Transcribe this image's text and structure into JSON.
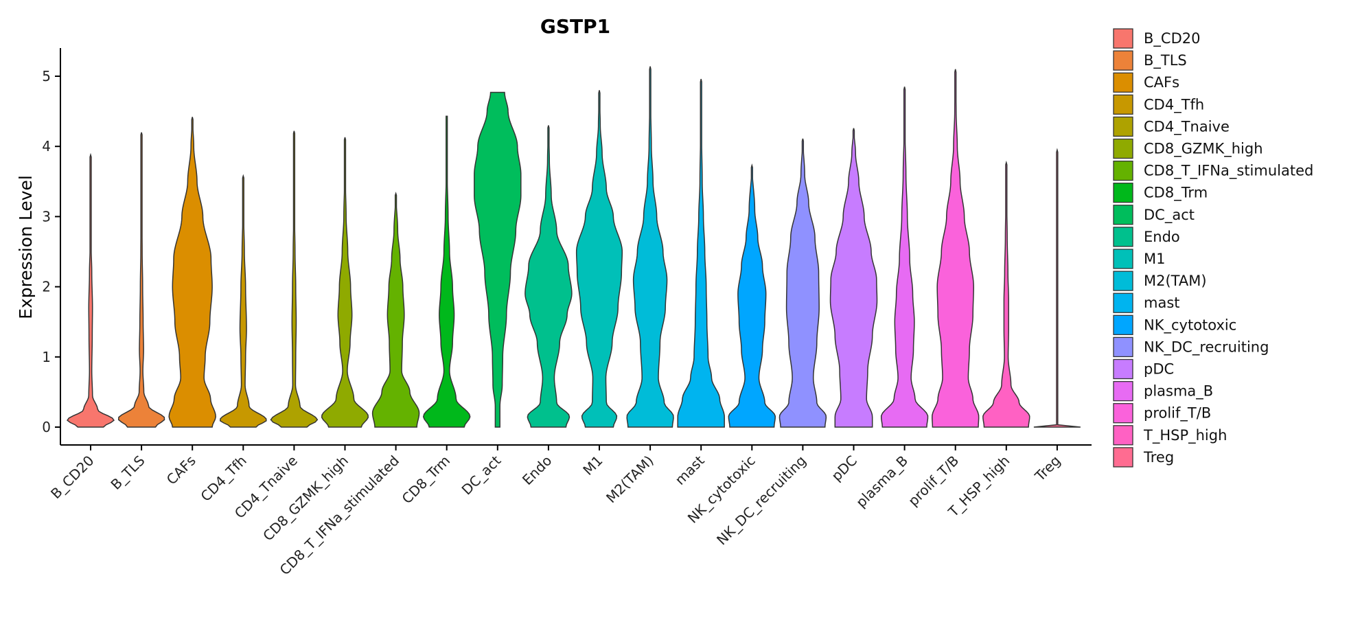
{
  "chart_data": {
    "type": "violin",
    "title": "GSTP1",
    "xlabel": "",
    "ylabel": "Expression Level",
    "ylim": [
      0,
      5.4
    ],
    "yticks": [
      0,
      1,
      2,
      3,
      4,
      5
    ],
    "legend_position": "right",
    "categories": [
      "B_CD20",
      "B_TLS",
      "CAFs",
      "CD4_Tfh",
      "CD4_Tnaive",
      "CD8_GZMK_high",
      "CD8_T_IFNa_stimulated",
      "CD8_Trm",
      "DC_act",
      "Endo",
      "M1",
      "M2(TAM)",
      "mast",
      "NK_cytotoxic",
      "NK_DC_recruiting",
      "pDC",
      "plasma_B",
      "prolif_T/B",
      "T_HSP_high",
      "Treg"
    ],
    "colors": [
      "#F8766D",
      "#EC8239",
      "#DB8E00",
      "#C79800",
      "#AEA200",
      "#8FAA00",
      "#64B200",
      "#00B81B",
      "#00BD5C",
      "#00C08D",
      "#00C0B8",
      "#00BCD8",
      "#00B4EF",
      "#00A6FF",
      "#8F91FF",
      "#C77CFF",
      "#E76BF3",
      "#FA62DB",
      "#FF61C3",
      "#FF6C91"
    ],
    "series": [
      {
        "name": "B_CD20",
        "ymax": 3.88,
        "profile": [
          [
            0,
            0.55
          ],
          [
            0.1,
            1
          ],
          [
            0.25,
            0.3
          ],
          [
            0.45,
            0.08
          ],
          [
            0.8,
            0.05
          ],
          [
            1.3,
            0.07
          ],
          [
            1.7,
            0.08
          ],
          [
            2.2,
            0.05
          ],
          [
            2.6,
            0.02
          ],
          [
            3.2,
            0.01
          ],
          [
            3.88,
            0
          ]
        ]
      },
      {
        "name": "B_TLS",
        "ymax": 4.2,
        "profile": [
          [
            0,
            0.6
          ],
          [
            0.12,
            1
          ],
          [
            0.3,
            0.3
          ],
          [
            0.5,
            0.1
          ],
          [
            0.8,
            0.06
          ],
          [
            1.1,
            0.09
          ],
          [
            1.5,
            0.07
          ],
          [
            2.0,
            0.05
          ],
          [
            2.5,
            0.03
          ],
          [
            3.2,
            0.01
          ],
          [
            4.2,
            0
          ]
        ]
      },
      {
        "name": "CAFs",
        "ymax": 4.42,
        "profile": [
          [
            0,
            0.85
          ],
          [
            0.15,
            1
          ],
          [
            0.4,
            0.78
          ],
          [
            0.7,
            0.5
          ],
          [
            1.0,
            0.55
          ],
          [
            1.5,
            0.75
          ],
          [
            2.0,
            0.85
          ],
          [
            2.4,
            0.8
          ],
          [
            3.0,
            0.45
          ],
          [
            3.5,
            0.2
          ],
          [
            4.0,
            0.06
          ],
          [
            4.42,
            0
          ]
        ]
      },
      {
        "name": "CD4_Tfh",
        "ymax": 3.58,
        "profile": [
          [
            0,
            0.55
          ],
          [
            0.1,
            1
          ],
          [
            0.3,
            0.25
          ],
          [
            0.6,
            0.08
          ],
          [
            1.0,
            0.1
          ],
          [
            1.4,
            0.14
          ],
          [
            2.0,
            0.1
          ],
          [
            2.5,
            0.05
          ],
          [
            3.0,
            0.02
          ],
          [
            3.58,
            0
          ]
        ]
      },
      {
        "name": "CD4_Tnaive",
        "ymax": 4.22,
        "profile": [
          [
            0,
            0.55
          ],
          [
            0.1,
            1
          ],
          [
            0.3,
            0.25
          ],
          [
            0.6,
            0.06
          ],
          [
            1.0,
            0.07
          ],
          [
            1.5,
            0.09
          ],
          [
            2.0,
            0.07
          ],
          [
            2.5,
            0.04
          ],
          [
            3.0,
            0.02
          ],
          [
            4.22,
            0
          ]
        ]
      },
      {
        "name": "CD8_GZMK_high",
        "ymax": 4.13,
        "profile": [
          [
            0,
            0.7
          ],
          [
            0.15,
            1
          ],
          [
            0.4,
            0.38
          ],
          [
            0.8,
            0.1
          ],
          [
            1.2,
            0.22
          ],
          [
            1.6,
            0.3
          ],
          [
            2.0,
            0.24
          ],
          [
            2.5,
            0.12
          ],
          [
            3.0,
            0.05
          ],
          [
            3.5,
            0.02
          ],
          [
            4.13,
            0
          ]
        ]
      },
      {
        "name": "CD8_T_IFNa_stimulated",
        "ymax": 3.33,
        "profile": [
          [
            0,
            0.9
          ],
          [
            0.2,
            1
          ],
          [
            0.5,
            0.6
          ],
          [
            0.8,
            0.25
          ],
          [
            1.2,
            0.28
          ],
          [
            1.6,
            0.36
          ],
          [
            2.0,
            0.3
          ],
          [
            2.4,
            0.18
          ],
          [
            2.8,
            0.08
          ],
          [
            3.33,
            0
          ]
        ]
      },
      {
        "name": "CD8_Trm",
        "ymax": 4.43,
        "profile": [
          [
            0,
            0.75
          ],
          [
            0.15,
            1
          ],
          [
            0.4,
            0.4
          ],
          [
            0.8,
            0.12
          ],
          [
            1.2,
            0.25
          ],
          [
            1.6,
            0.32
          ],
          [
            2.0,
            0.25
          ],
          [
            2.5,
            0.12
          ],
          [
            3.0,
            0.06
          ],
          [
            3.6,
            0.02
          ],
          [
            4.43,
            0
          ]
        ]
      },
      {
        "name": "DC_act",
        "ymax": 4.77,
        "profile": [
          [
            0,
            0.1
          ],
          [
            0.3,
            0.1
          ],
          [
            0.6,
            0.2
          ],
          [
            1.0,
            0.22
          ],
          [
            1.6,
            0.38
          ],
          [
            2.2,
            0.55
          ],
          [
            2.8,
            0.78
          ],
          [
            3.3,
            1
          ],
          [
            3.6,
            1
          ],
          [
            4.0,
            0.85
          ],
          [
            4.5,
            0.45
          ],
          [
            4.77,
            0.3
          ]
        ]
      },
      {
        "name": "Endo",
        "ymax": 4.3,
        "profile": [
          [
            0,
            0.75
          ],
          [
            0.15,
            0.9
          ],
          [
            0.35,
            0.35
          ],
          [
            0.7,
            0.25
          ],
          [
            1.2,
            0.48
          ],
          [
            1.6,
            0.8
          ],
          [
            1.9,
            1
          ],
          [
            2.3,
            0.85
          ],
          [
            2.8,
            0.35
          ],
          [
            3.3,
            0.12
          ],
          [
            3.8,
            0.04
          ],
          [
            4.3,
            0
          ]
        ]
      },
      {
        "name": "M1",
        "ymax": 4.8,
        "profile": [
          [
            0,
            0.6
          ],
          [
            0.15,
            0.75
          ],
          [
            0.35,
            0.3
          ],
          [
            0.7,
            0.28
          ],
          [
            1.2,
            0.55
          ],
          [
            1.7,
            0.8
          ],
          [
            2.2,
            0.95
          ],
          [
            2.5,
            0.98
          ],
          [
            3.0,
            0.6
          ],
          [
            3.4,
            0.3
          ],
          [
            3.9,
            0.12
          ],
          [
            4.3,
            0.04
          ],
          [
            4.8,
            0
          ]
        ]
      },
      {
        "name": "M2(TAM)",
        "ymax": 5.14,
        "profile": [
          [
            0,
            0.95
          ],
          [
            0.15,
            1
          ],
          [
            0.35,
            0.6
          ],
          [
            0.7,
            0.35
          ],
          [
            1.2,
            0.42
          ],
          [
            1.7,
            0.65
          ],
          [
            2.1,
            0.72
          ],
          [
            2.5,
            0.55
          ],
          [
            3.0,
            0.28
          ],
          [
            3.5,
            0.12
          ],
          [
            4.0,
            0.05
          ],
          [
            4.6,
            0.02
          ],
          [
            5.14,
            0
          ]
        ]
      },
      {
        "name": "mast",
        "ymax": 4.96,
        "profile": [
          [
            0,
            1
          ],
          [
            0.15,
            1
          ],
          [
            0.4,
            0.8
          ],
          [
            0.7,
            0.45
          ],
          [
            1.0,
            0.3
          ],
          [
            1.5,
            0.25
          ],
          [
            2.0,
            0.22
          ],
          [
            2.5,
            0.16
          ],
          [
            3.0,
            0.1
          ],
          [
            3.5,
            0.05
          ],
          [
            4.2,
            0.02
          ],
          [
            4.96,
            0
          ]
        ]
      },
      {
        "name": "NK_cytotoxic",
        "ymax": 3.73,
        "profile": [
          [
            0,
            0.95
          ],
          [
            0.15,
            1
          ],
          [
            0.35,
            0.55
          ],
          [
            0.7,
            0.3
          ],
          [
            1.1,
            0.45
          ],
          [
            1.5,
            0.55
          ],
          [
            1.9,
            0.6
          ],
          [
            2.3,
            0.45
          ],
          [
            2.7,
            0.25
          ],
          [
            3.1,
            0.12
          ],
          [
            3.73,
            0
          ]
        ]
      },
      {
        "name": "NK_DC_recruiting",
        "ymax": 4.11,
        "profile": [
          [
            0,
            0.95
          ],
          [
            0.15,
            1
          ],
          [
            0.35,
            0.6
          ],
          [
            0.7,
            0.45
          ],
          [
            1.2,
            0.6
          ],
          [
            1.7,
            0.7
          ],
          [
            2.2,
            0.68
          ],
          [
            2.7,
            0.52
          ],
          [
            3.2,
            0.25
          ],
          [
            3.6,
            0.08
          ],
          [
            4.11,
            0
          ]
        ]
      },
      {
        "name": "pDC",
        "ymax": 4.26,
        "profile": [
          [
            0,
            0.8
          ],
          [
            0.15,
            0.8
          ],
          [
            0.4,
            0.55
          ],
          [
            0.8,
            0.6
          ],
          [
            1.3,
            0.8
          ],
          [
            1.8,
            1
          ],
          [
            2.1,
            0.98
          ],
          [
            2.5,
            0.75
          ],
          [
            3.0,
            0.45
          ],
          [
            3.5,
            0.22
          ],
          [
            3.9,
            0.08
          ],
          [
            4.26,
            0
          ]
        ]
      },
      {
        "name": "plasma_B",
        "ymax": 4.85,
        "profile": [
          [
            0,
            0.95
          ],
          [
            0.15,
            1
          ],
          [
            0.4,
            0.45
          ],
          [
            0.7,
            0.28
          ],
          [
            1.1,
            0.38
          ],
          [
            1.5,
            0.42
          ],
          [
            1.9,
            0.35
          ],
          [
            2.4,
            0.22
          ],
          [
            3.0,
            0.12
          ],
          [
            3.6,
            0.06
          ],
          [
            4.2,
            0.02
          ],
          [
            4.85,
            0
          ]
        ]
      },
      {
        "name": "prolif_T/B",
        "ymax": 5.1,
        "profile": [
          [
            0,
            0.98
          ],
          [
            0.15,
            1
          ],
          [
            0.4,
            0.75
          ],
          [
            0.7,
            0.55
          ],
          [
            1.1,
            0.6
          ],
          [
            1.6,
            0.75
          ],
          [
            2.0,
            0.78
          ],
          [
            2.5,
            0.6
          ],
          [
            3.0,
            0.38
          ],
          [
            3.5,
            0.2
          ],
          [
            4.0,
            0.08
          ],
          [
            4.5,
            0.03
          ],
          [
            5.1,
            0
          ]
        ]
      },
      {
        "name": "T_HSP_high",
        "ymax": 3.77,
        "profile": [
          [
            0,
            0.95
          ],
          [
            0.15,
            1
          ],
          [
            0.35,
            0.55
          ],
          [
            0.6,
            0.2
          ],
          [
            1.0,
            0.08
          ],
          [
            1.4,
            0.1
          ],
          [
            1.8,
            0.1
          ],
          [
            2.2,
            0.07
          ],
          [
            2.7,
            0.04
          ],
          [
            3.2,
            0.02
          ],
          [
            3.77,
            0
          ]
        ]
      },
      {
        "name": "Treg",
        "ymax": 3.95,
        "profile": [
          [
            0,
            1
          ],
          [
            0.02,
            0.02
          ],
          [
            0.5,
            0.02
          ],
          [
            1.5,
            0.02
          ],
          [
            3.0,
            0.02
          ],
          [
            3.95,
            0
          ]
        ]
      }
    ]
  }
}
